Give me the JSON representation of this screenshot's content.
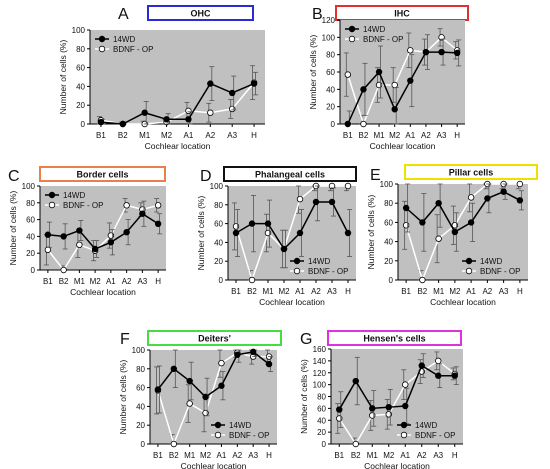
{
  "chart_data": [
    {
      "type": "line",
      "letter": "A",
      "title": "OHC",
      "title_color": "#2b2bd6",
      "xlabel": "Cochlear location",
      "ylabel": "Number of cells (%)",
      "categories": [
        "B1",
        "B2",
        "M1",
        "M2",
        "A1",
        "A2",
        "A3",
        "H"
      ],
      "ylim": [
        0,
        100
      ],
      "yticks": [
        0,
        20,
        40,
        60,
        80,
        100
      ],
      "legend_position": "top-left",
      "series": [
        {
          "name": "14WD",
          "marker": "filled",
          "values": [
            2,
            0,
            12,
            5,
            5,
            43,
            33,
            43
          ],
          "errors": [
            3,
            2,
            12,
            6,
            8,
            18,
            18,
            12
          ]
        },
        {
          "name": "BDNF - OP",
          "marker": "open",
          "values": [
            4,
            0,
            0,
            2,
            14,
            12,
            16,
            44
          ],
          "errors": [
            4,
            2,
            3,
            3,
            9,
            10,
            10,
            18
          ]
        }
      ]
    },
    {
      "type": "line",
      "letter": "B",
      "title": "IHC",
      "title_color": "#e03030",
      "xlabel": "Cochlear location",
      "ylabel": "Number of cells (%)",
      "categories": [
        "B1",
        "B2",
        "M1",
        "M2",
        "A1",
        "A2",
        "A3",
        "H"
      ],
      "ylim": [
        0,
        120
      ],
      "yticks": [
        0,
        20,
        40,
        60,
        80,
        100,
        120
      ],
      "legend_position": "top-left",
      "series": [
        {
          "name": "14WD",
          "marker": "filled",
          "values": [
            0,
            40,
            60,
            17,
            50,
            83,
            83,
            82
          ],
          "errors": [
            15,
            30,
            30,
            25,
            30,
            20,
            15,
            15
          ]
        },
        {
          "name": "BDNF - OP",
          "marker": "open",
          "values": [
            57,
            0,
            45,
            45,
            85,
            83,
            100,
            85
          ],
          "errors": [
            25,
            10,
            20,
            20,
            20,
            15,
            10,
            10
          ]
        }
      ]
    },
    {
      "type": "line",
      "letter": "C",
      "title": "Border cells",
      "title_color": "#e8804a",
      "xlabel": "Cochlear location",
      "ylabel": "Number of cells (%)",
      "categories": [
        "B1",
        "B2",
        "M1",
        "M2",
        "A1",
        "A2",
        "A3",
        "H"
      ],
      "ylim": [
        0,
        100
      ],
      "yticks": [
        0,
        20,
        40,
        60,
        80,
        100
      ],
      "legend_position": "top-left",
      "series": [
        {
          "name": "14WD",
          "marker": "filled",
          "values": [
            42,
            40,
            47,
            25,
            33,
            45,
            67,
            55
          ],
          "errors": [
            15,
            15,
            12,
            10,
            15,
            15,
            15,
            12
          ]
        },
        {
          "name": "BDNF - OP",
          "marker": "open",
          "values": [
            24,
            0,
            30,
            23,
            41,
            77,
            72,
            77
          ],
          "errors": [
            18,
            5,
            15,
            12,
            15,
            8,
            8,
            8
          ]
        }
      ]
    },
    {
      "type": "line",
      "letter": "D",
      "title": "Phalangeal cells",
      "title_color": "#111111",
      "xlabel": "Cochlear location",
      "ylabel": "Number of cells (%)",
      "categories": [
        "B1",
        "B2",
        "M1",
        "M2",
        "A1",
        "A2",
        "A3",
        "H"
      ],
      "ylim": [
        0,
        100
      ],
      "yticks": [
        0,
        20,
        40,
        60,
        80,
        100
      ],
      "legend_position": "bottom-right",
      "series": [
        {
          "name": "14WD",
          "marker": "filled",
          "values": [
            50,
            60,
            60,
            33,
            50,
            83,
            83,
            50
          ],
          "errors": [
            25,
            30,
            25,
            20,
            25,
            20,
            15,
            25
          ]
        },
        {
          "name": "BDNF - OP",
          "marker": "open",
          "values": [
            57,
            0,
            50,
            33,
            86,
            100,
            100,
            100
          ],
          "errors": [
            25,
            10,
            20,
            20,
            15,
            5,
            5,
            5
          ]
        }
      ]
    },
    {
      "type": "line",
      "letter": "E",
      "title": "Pillar cells",
      "title_color": "#f0e000",
      "xlabel": "Cochlear location",
      "ylabel": "Number of cells (%)",
      "categories": [
        "B1",
        "B2",
        "M1",
        "M2",
        "A1",
        "A2",
        "A3",
        "H"
      ],
      "ylim": [
        0,
        100
      ],
      "yticks": [
        0,
        20,
        40,
        60,
        80,
        100
      ],
      "legend_position": "bottom-right",
      "series": [
        {
          "name": "14WD",
          "marker": "filled",
          "values": [
            75,
            60,
            80,
            50,
            60,
            85,
            92,
            83
          ],
          "errors": [
            25,
            30,
            25,
            20,
            20,
            15,
            8,
            10
          ]
        },
        {
          "name": "BDNF - OP",
          "marker": "open",
          "values": [
            57,
            0,
            43,
            57,
            86,
            100,
            100,
            100
          ],
          "errors": [
            25,
            10,
            25,
            20,
            15,
            5,
            5,
            5
          ]
        }
      ]
    },
    {
      "type": "line",
      "letter": "F",
      "title": "Deiters'",
      "title_color": "#44dd44",
      "xlabel": "Cochlear location",
      "ylabel": "Number of cells (%)",
      "categories": [
        "B1",
        "B2",
        "M1",
        "M2",
        "A1",
        "A2",
        "A3",
        "H"
      ],
      "ylim": [
        0,
        100
      ],
      "yticks": [
        0,
        20,
        40,
        60,
        80,
        100
      ],
      "legend_position": "bottom-right",
      "series": [
        {
          "name": "14WD",
          "marker": "filled",
          "values": [
            58,
            80,
            67,
            50,
            62,
            95,
            98,
            85
          ],
          "errors": [
            25,
            20,
            20,
            20,
            15,
            8,
            5,
            8
          ]
        },
        {
          "name": "BDNF - OP",
          "marker": "open",
          "values": [
            57,
            0,
            43,
            33,
            86,
            97,
            93,
            93
          ],
          "errors": [
            25,
            10,
            20,
            20,
            15,
            5,
            8,
            8
          ]
        }
      ]
    },
    {
      "type": "line",
      "letter": "G",
      "title": "Hensen's cells",
      "title_color": "#dd33dd",
      "xlabel": "Cochlear location",
      "ylabel": "Number of cells (%)",
      "categories": [
        "B1",
        "B2",
        "M1",
        "M2",
        "A1",
        "A2",
        "A3",
        "H"
      ],
      "ylim": [
        0,
        160
      ],
      "yticks": [
        0,
        20,
        40,
        60,
        80,
        100,
        120,
        140,
        160
      ],
      "legend_position": "bottom-right",
      "series": [
        {
          "name": "14WD",
          "marker": "filled",
          "values": [
            58,
            106,
            60,
            62,
            64,
            132,
            115,
            115
          ],
          "errors": [
            30,
            40,
            30,
            30,
            30,
            20,
            20,
            15
          ]
        },
        {
          "name": "BDNF - OP",
          "marker": "open",
          "values": [
            43,
            0,
            48,
            50,
            100,
            122,
            140,
            118
          ],
          "errors": [
            25,
            10,
            25,
            25,
            25,
            20,
            15,
            10
          ]
        }
      ]
    }
  ]
}
